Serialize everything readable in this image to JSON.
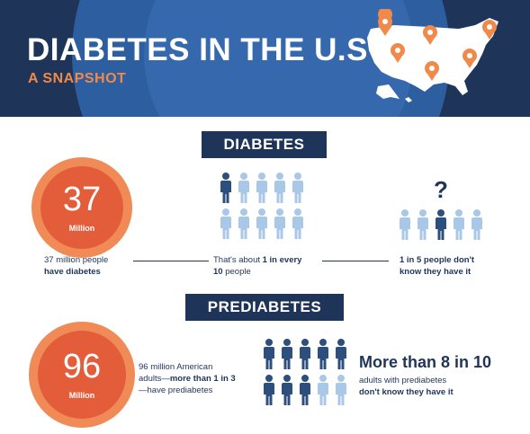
{
  "header": {
    "title": "DIABETES IN THE U.S",
    "subtitle": "A SNAPSHOT",
    "map_icon": "us-map-with-location-pins"
  },
  "diabetes": {
    "banner": "DIABETES",
    "circle_number": "37",
    "circle_unit": "Million",
    "caption_line1": "37 million people",
    "caption_line2": "have diabetes",
    "ratio_prefix": "That's about ",
    "ratio_bold": "1 in every",
    "ratio_line2_bold": "10",
    "ratio_line2_rest": " people",
    "people_highlighted": 1,
    "people_total": 10,
    "unaware_question": "?",
    "unaware_bold_line1": "1 in 5 people don't",
    "unaware_bold_line2": "know they have it",
    "unaware_highlighted": 1,
    "unaware_total": 5
  },
  "prediabetes": {
    "banner": "PREDIABETES",
    "circle_number": "96",
    "circle_unit": "Million",
    "caption_line1": "96 million American",
    "caption_line2_prefix": "adults—",
    "caption_line2_bold": "more than 1 in 3",
    "caption_line3": "—have prediabetes",
    "people_highlighted": 8,
    "people_total": 10,
    "stat_title": "More than 8 in 10",
    "stat_line1": "adults with prediabetes",
    "stat_line2": "don't know they have it"
  },
  "colors": {
    "navy": "#1e3559",
    "person_dark": "#2c4f7e",
    "person_light": "#a9c8e8",
    "orange": "#f08a4b",
    "circle_inner": "#e35d3a"
  }
}
